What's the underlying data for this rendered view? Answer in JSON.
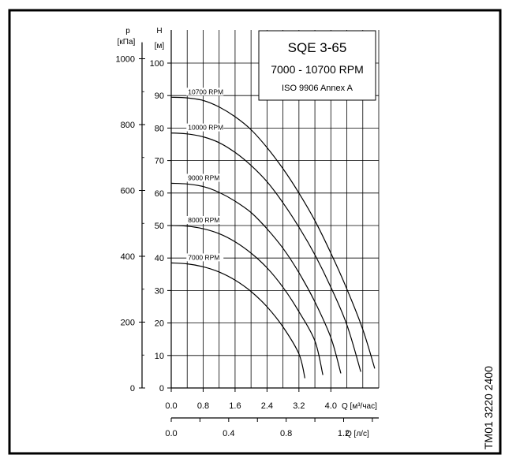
{
  "chart_data": {
    "type": "line",
    "title": "SQE 3-65",
    "subtitle": "7000 - 10700 RPM",
    "standard": "ISO 9906 Annex A",
    "side_label": "TM01 3220 2400",
    "y_left": {
      "label": "p",
      "unit": "[кПа]",
      "ticks": [
        "0",
        "200",
        "400",
        "600",
        "800",
        "1000"
      ],
      "range": [
        0,
        1000
      ]
    },
    "y_right": {
      "label": "H",
      "unit": "[м]",
      "ticks": [
        "0",
        "10",
        "20",
        "30",
        "40",
        "50",
        "60",
        "70",
        "80",
        "90",
        "100"
      ],
      "range": [
        0,
        110
      ]
    },
    "x_top": {
      "label": "Q [м³/час]",
      "ticks": [
        "0.0",
        "0.8",
        "1.6",
        "2.4",
        "3.2",
        "4.0"
      ],
      "range": [
        0,
        5.2
      ]
    },
    "x_bottom": {
      "label": "Q [л/с]",
      "ticks": [
        "0.0",
        "0.4",
        "0.8",
        "1.2"
      ]
    },
    "grid": true,
    "legend_position": "top-right",
    "series": [
      {
        "name": "10700 RPM",
        "x": [
          0,
          0.4,
          0.8,
          1.2,
          1.6,
          2.0,
          2.4,
          2.8,
          3.2,
          3.6,
          4.0,
          4.4,
          4.8,
          5.1
        ],
        "y": [
          89.5,
          89.3,
          88.5,
          86.5,
          83.5,
          79.5,
          74,
          67.5,
          60,
          51.5,
          41.5,
          30.5,
          18,
          6
        ]
      },
      {
        "name": "10000 RPM",
        "x": [
          0,
          0.4,
          0.8,
          1.2,
          1.6,
          2.0,
          2.4,
          2.8,
          3.2,
          3.6,
          4.0,
          4.4,
          4.75
        ],
        "y": [
          78.5,
          78.2,
          77.3,
          75.5,
          72.5,
          68.5,
          63.5,
          57,
          49.5,
          41,
          31,
          19.5,
          5
        ]
      },
      {
        "name": "9000 RPM",
        "x": [
          0,
          0.4,
          0.8,
          1.2,
          1.6,
          2.0,
          2.4,
          2.8,
          3.2,
          3.6,
          4.0,
          4.25
        ],
        "y": [
          63,
          62.8,
          62,
          60.2,
          57.5,
          54,
          49,
          43,
          35.5,
          26.5,
          15.5,
          4.5
        ]
      },
      {
        "name": "8000 RPM",
        "x": [
          0,
          0.4,
          0.8,
          1.2,
          1.6,
          2.0,
          2.4,
          2.8,
          3.2,
          3.6,
          3.8
        ],
        "y": [
          50,
          49.8,
          49,
          47.5,
          45,
          41.5,
          37,
          31,
          23.5,
          14.5,
          4
        ]
      },
      {
        "name": "7000 RPM",
        "x": [
          0,
          0.4,
          0.8,
          1.2,
          1.6,
          2.0,
          2.4,
          2.8,
          3.2,
          3.35
        ],
        "y": [
          38.5,
          38.2,
          37.3,
          35.7,
          33.2,
          29.7,
          25,
          18.8,
          10.5,
          3
        ]
      }
    ]
  }
}
